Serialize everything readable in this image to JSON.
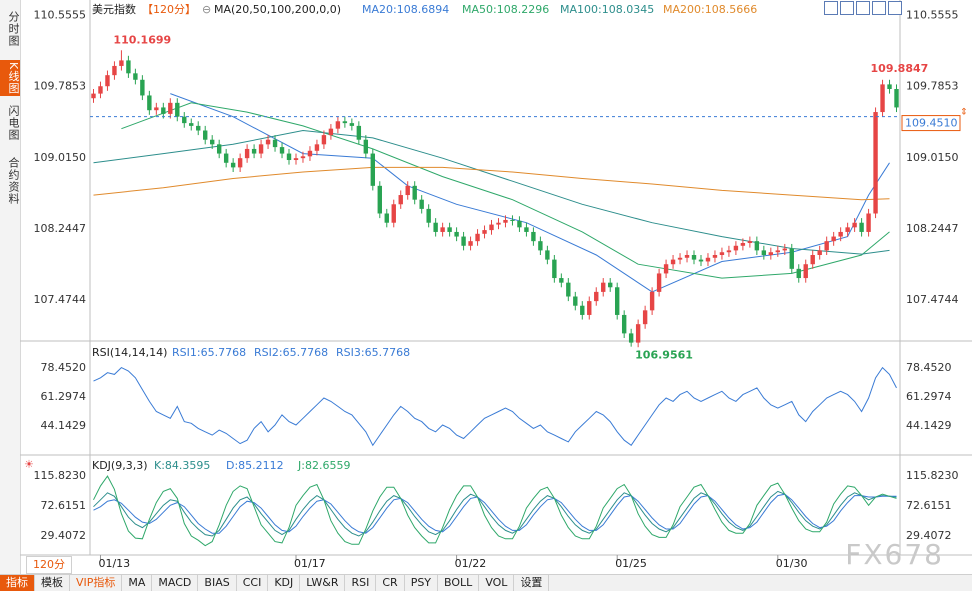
{
  "sidebar": {
    "tabs": [
      {
        "label": "分时图",
        "active": false
      },
      {
        "label": "K线图",
        "active": true
      },
      {
        "label": "闪电图",
        "active": false
      },
      {
        "label": "合约资料",
        "active": false
      }
    ]
  },
  "header": {
    "instrument": "美元指数",
    "timeframe": "【120分】",
    "ma_params": "MA(20,50,100,200,0,0)",
    "ma20": "MA20:108.6894",
    "ma50": "MA50:108.2296",
    "ma100": "MA100:108.0345",
    "ma200": "MA200:108.5666"
  },
  "colors": {
    "up": "#e64545",
    "down": "#29a352",
    "ma20": "#3a7bd5",
    "ma50": "#2fa86a",
    "ma100": "#2d8e8c",
    "ma200": "#e08a2c",
    "current_price": "#3a7bd5",
    "kdj_k": "#2d8e8c",
    "kdj_d": "#3a7bd5",
    "kdj_j": "#2fa86a"
  },
  "chart_data": [
    {
      "type": "candlestick",
      "instrument": "美元指数",
      "y_ticks": [
        "110.5555",
        "109.7853",
        "109.0150",
        "108.2447",
        "107.4744"
      ],
      "ylim": [
        107.05,
        110.65
      ],
      "x_ticks": [
        {
          "label": "01/13",
          "index": 1
        },
        {
          "label": "01/17",
          "index": 29
        },
        {
          "label": "01/22",
          "index": 52
        },
        {
          "label": "01/25",
          "index": 75
        },
        {
          "label": "01/30",
          "index": 98
        }
      ],
      "candle_count": 116,
      "close": [
        109.7,
        109.78,
        109.9,
        110.0,
        110.06,
        109.92,
        109.85,
        109.68,
        109.52,
        109.55,
        109.48,
        109.6,
        109.45,
        109.38,
        109.35,
        109.3,
        109.2,
        109.15,
        109.05,
        108.95,
        108.9,
        109.0,
        109.1,
        109.05,
        109.15,
        109.2,
        109.12,
        109.05,
        108.98,
        109.0,
        109.02,
        109.08,
        109.15,
        109.25,
        109.32,
        109.4,
        109.38,
        109.35,
        109.2,
        109.05,
        108.7,
        108.4,
        108.3,
        108.5,
        108.6,
        108.7,
        108.55,
        108.45,
        108.3,
        108.2,
        108.25,
        108.2,
        108.15,
        108.05,
        108.1,
        108.18,
        108.22,
        108.28,
        108.3,
        108.33,
        108.32,
        108.25,
        108.2,
        108.1,
        108.0,
        107.9,
        107.7,
        107.65,
        107.5,
        107.4,
        107.3,
        107.45,
        107.55,
        107.65,
        107.6,
        107.3,
        107.1,
        107.0,
        107.2,
        107.35,
        107.55,
        107.75,
        107.85,
        107.9,
        107.92,
        107.95,
        107.9,
        107.88,
        107.92,
        107.95,
        107.98,
        108.0,
        108.05,
        108.08,
        108.1,
        108.0,
        107.95,
        107.98,
        108.0,
        108.02,
        107.8,
        107.7,
        107.85,
        107.95,
        108.0,
        108.1,
        108.15,
        108.2,
        108.25,
        108.3,
        108.2,
        108.4,
        109.5,
        109.8,
        109.75,
        109.55
      ],
      "high_label": "110.1699",
      "low_label": "106.9561",
      "recent_high_label": "109.8847",
      "current_price": 109.451,
      "current_price_label": "109.4510",
      "moving_averages": [
        {
          "name": "MA20",
          "color": "#3a7bd5",
          "points": [
            [
              11,
              109.7
            ],
            [
              20,
              109.45
            ],
            [
              30,
              109.05
            ],
            [
              40,
              109.0
            ],
            [
              45,
              108.7
            ],
            [
              52,
              108.5
            ],
            [
              62,
              108.3
            ],
            [
              72,
              107.95
            ],
            [
              80,
              107.55
            ],
            [
              90,
              107.88
            ],
            [
              100,
              107.98
            ],
            [
              108,
              108.15
            ],
            [
              111,
              108.6
            ],
            [
              114,
              108.95
            ]
          ]
        },
        {
          "name": "MA50",
          "color": "#2fa86a",
          "points": [
            [
              4,
              109.32
            ],
            [
              14,
              109.6
            ],
            [
              22,
              109.5
            ],
            [
              30,
              109.35
            ],
            [
              40,
              109.1
            ],
            [
              50,
              108.8
            ],
            [
              60,
              108.55
            ],
            [
              70,
              108.2
            ],
            [
              78,
              107.85
            ],
            [
              90,
              107.7
            ],
            [
              100,
              107.75
            ],
            [
              110,
              107.95
            ],
            [
              114,
              108.2
            ]
          ]
        },
        {
          "name": "MA100",
          "color": "#2d8e8c",
          "points": [
            [
              0,
              108.95
            ],
            [
              10,
              109.05
            ],
            [
              20,
              109.15
            ],
            [
              30,
              109.3
            ],
            [
              40,
              109.22
            ],
            [
              50,
              109.0
            ],
            [
              60,
              108.75
            ],
            [
              70,
              108.5
            ],
            [
              80,
              108.3
            ],
            [
              90,
              108.15
            ],
            [
              100,
              108.02
            ],
            [
              110,
              107.96
            ],
            [
              114,
              108.0
            ]
          ]
        },
        {
          "name": "MA200",
          "color": "#e08a2c",
          "points": [
            [
              0,
              108.6
            ],
            [
              10,
              108.68
            ],
            [
              20,
              108.78
            ],
            [
              30,
              108.85
            ],
            [
              40,
              108.9
            ],
            [
              50,
              108.9
            ],
            [
              60,
              108.85
            ],
            [
              70,
              108.78
            ],
            [
              80,
              108.72
            ],
            [
              90,
              108.65
            ],
            [
              100,
              108.6
            ],
            [
              110,
              108.55
            ],
            [
              114,
              108.56
            ]
          ]
        }
      ]
    },
    {
      "type": "line",
      "indicator": "RSI",
      "header": "RSI(14,14,14)",
      "series": [
        {
          "name": "RSI1:65.7768",
          "color": "#3a7bd5"
        },
        {
          "name": "RSI2:65.7768",
          "color": "#3a7bd5"
        },
        {
          "name": "RSI3:65.7768",
          "color": "#3a7bd5"
        }
      ],
      "y_ticks": [
        "78.4520",
        "61.2974",
        "44.1429"
      ],
      "ylim": [
        28,
        92
      ],
      "values": [
        70,
        72,
        75,
        74,
        78,
        76,
        72,
        65,
        58,
        52,
        50,
        48,
        55,
        46,
        45,
        42,
        40,
        38,
        41,
        39,
        36,
        33,
        35,
        42,
        46,
        40,
        44,
        50,
        46,
        44,
        48,
        52,
        56,
        60,
        58,
        55,
        52,
        50,
        45,
        40,
        32,
        38,
        44,
        50,
        55,
        52,
        48,
        46,
        42,
        40,
        44,
        42,
        38,
        36,
        40,
        44,
        48,
        50,
        52,
        54,
        52,
        48,
        45,
        42,
        44,
        40,
        38,
        36,
        34,
        40,
        44,
        48,
        52,
        50,
        46,
        40,
        35,
        32,
        38,
        44,
        50,
        56,
        60,
        58,
        62,
        64,
        60,
        58,
        60,
        62,
        64,
        60,
        58,
        62,
        64,
        66,
        60,
        56,
        54,
        56,
        58,
        50,
        46,
        52,
        56,
        60,
        62,
        64,
        62,
        58,
        52,
        60,
        72,
        78,
        74,
        66
      ]
    },
    {
      "type": "line",
      "indicator": "KDJ",
      "header": "KDJ(9,3,3)",
      "series": [
        {
          "name": "K:84.3595",
          "color": "#2d8e8c"
        },
        {
          "name": "D:85.2112",
          "color": "#3a7bd5"
        },
        {
          "name": "J:82.6559",
          "color": "#2fa86a"
        }
      ],
      "y_ticks": [
        "115.8230",
        "72.6151",
        "29.4072"
      ],
      "ylim": [
        5,
        140
      ],
      "period": 11,
      "K": [
        70,
        80,
        90,
        85,
        70,
        55,
        45,
        40,
        48,
        60,
        72,
        80,
        78,
        62,
        48,
        38,
        30,
        28,
        36,
        52,
        68,
        80,
        84,
        74,
        60,
        48,
        36,
        30,
        36,
        52,
        66,
        78,
        86,
        80,
        66,
        52,
        40,
        32,
        28,
        34,
        48,
        64,
        78,
        86,
        82,
        70,
        56,
        44,
        34,
        30,
        36,
        50,
        66,
        80,
        88,
        84,
        70,
        56,
        44,
        36,
        32,
        38,
        52,
        66,
        78,
        86,
        82,
        70,
        56,
        44,
        36,
        32,
        38,
        52,
        66,
        80,
        90,
        86,
        72,
        58,
        46,
        38,
        34,
        40,
        54,
        68,
        82,
        90,
        86,
        74,
        60,
        48,
        40,
        36,
        42,
        56,
        70,
        84,
        92,
        88,
        76,
        62,
        50,
        42,
        38,
        44,
        58,
        72,
        84,
        90,
        86,
        80,
        84,
        86,
        85,
        84
      ],
      "D": [
        65,
        70,
        78,
        80,
        75,
        65,
        55,
        48,
        46,
        52,
        62,
        72,
        76,
        70,
        58,
        46,
        38,
        32,
        32,
        42,
        56,
        70,
        78,
        76,
        68,
        56,
        44,
        36,
        34,
        42,
        56,
        68,
        78,
        80,
        74,
        62,
        50,
        40,
        34,
        32,
        40,
        54,
        68,
        80,
        82,
        76,
        64,
        52,
        42,
        36,
        34,
        42,
        56,
        70,
        82,
        84,
        76,
        64,
        52,
        42,
        36,
        36,
        44,
        58,
        70,
        80,
        82,
        76,
        64,
        52,
        42,
        36,
        36,
        44,
        58,
        72,
        84,
        86,
        78,
        66,
        54,
        44,
        38,
        38,
        46,
        60,
        74,
        84,
        86,
        78,
        66,
        54,
        44,
        38,
        40,
        48,
        62,
        76,
        86,
        88,
        80,
        68,
        56,
        46,
        40,
        42,
        50,
        64,
        76,
        86,
        86,
        84,
        84,
        85,
        85,
        85
      ],
      "J": [
        80,
        100,
        114,
        95,
        60,
        35,
        25,
        24,
        52,
        76,
        92,
        96,
        82,
        46,
        28,
        22,
        14,
        20,
        44,
        72,
        92,
        100,
        96,
        70,
        44,
        32,
        20,
        18,
        40,
        72,
        86,
        98,
        102,
        80,
        50,
        32,
        20,
        16,
        16,
        38,
        64,
        84,
        98,
        98,
        82,
        58,
        40,
        28,
        18,
        18,
        40,
        66,
        86,
        100,
        100,
        84,
        58,
        40,
        28,
        24,
        24,
        42,
        68,
        82,
        94,
        98,
        82,
        58,
        40,
        28,
        24,
        24,
        42,
        68,
        82,
        96,
        102,
        86,
        60,
        42,
        30,
        26,
        26,
        44,
        70,
        84,
        98,
        102,
        86,
        66,
        48,
        36,
        32,
        32,
        46,
        72,
        86,
        100,
        104,
        88,
        68,
        50,
        38,
        34,
        34,
        48,
        74,
        88,
        100,
        98,
        86,
        72,
        84,
        88,
        85,
        82
      ]
    }
  ],
  "bottom": {
    "timeframe": "120分",
    "tabs": [
      "指标",
      "模板",
      "VIP指标",
      "MA",
      "MACD",
      "BIAS",
      "CCI",
      "KDJ",
      "LW&R",
      "RSI",
      "CR",
      "PSY",
      "BOLL",
      "VOL",
      "设置"
    ],
    "watermark": "FX678"
  }
}
